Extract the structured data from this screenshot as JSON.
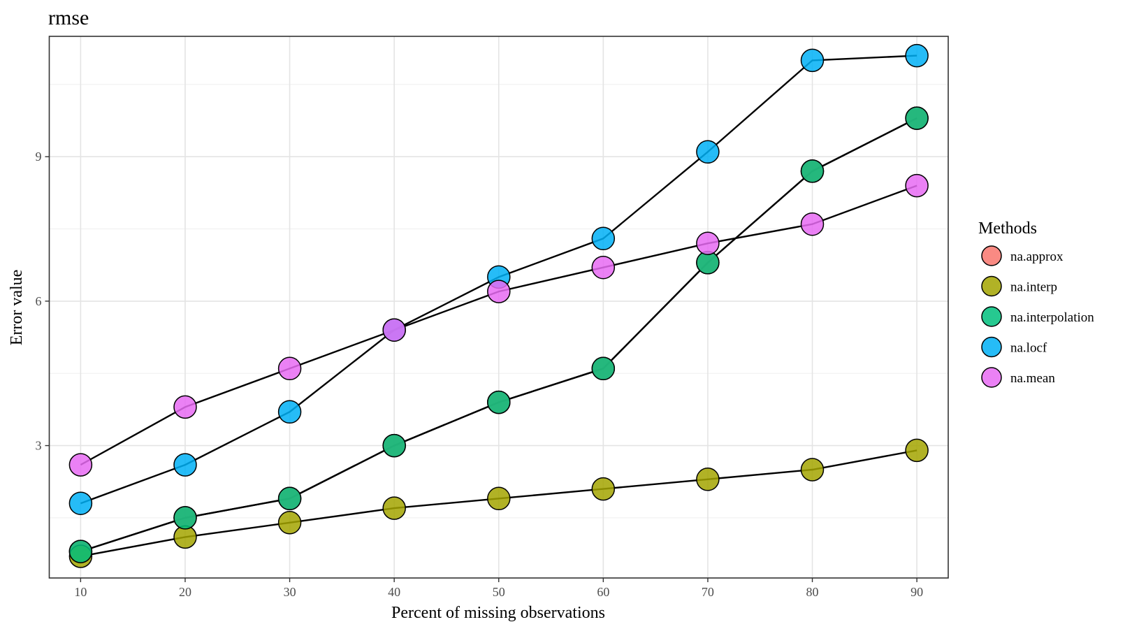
{
  "chart_data": {
    "type": "scatter",
    "title": "rmse",
    "xlabel": "Percent of missing observations",
    "ylabel": "Error value",
    "x": [
      10,
      20,
      30,
      40,
      50,
      60,
      70,
      80,
      90
    ],
    "xticks": [
      "10",
      "20",
      "30",
      "40",
      "50",
      "60",
      "70",
      "80",
      "90"
    ],
    "yticks": [
      "3",
      "6",
      "9"
    ],
    "xlim": [
      7,
      93
    ],
    "ylim": [
      0.25,
      11.5
    ],
    "grid": true,
    "legend": {
      "title": "Methods",
      "placement": "right"
    },
    "series": [
      {
        "name": "na.approx",
        "color": "#F8766D",
        "values": [
          0.8,
          1.5,
          1.9,
          3.0,
          3.9,
          4.6,
          6.8,
          8.7,
          9.8
        ]
      },
      {
        "name": "na.interp",
        "color": "#A3A500",
        "values": [
          0.7,
          1.1,
          1.4,
          1.7,
          1.9,
          2.1,
          2.3,
          2.5,
          2.9
        ]
      },
      {
        "name": "na.interpolation",
        "color": "#00BF7D",
        "values": [
          0.8,
          1.5,
          1.9,
          3.0,
          3.9,
          4.6,
          6.8,
          8.7,
          9.8
        ]
      },
      {
        "name": "na.locf",
        "color": "#00B0F6",
        "values": [
          1.8,
          2.6,
          3.7,
          5.4,
          6.5,
          7.3,
          9.1,
          11.0,
          11.1
        ]
      },
      {
        "name": "na.mean",
        "color": "#E76BF3",
        "values": [
          2.6,
          3.8,
          4.6,
          5.4,
          6.2,
          6.7,
          7.2,
          7.6,
          8.4
        ]
      }
    ]
  }
}
